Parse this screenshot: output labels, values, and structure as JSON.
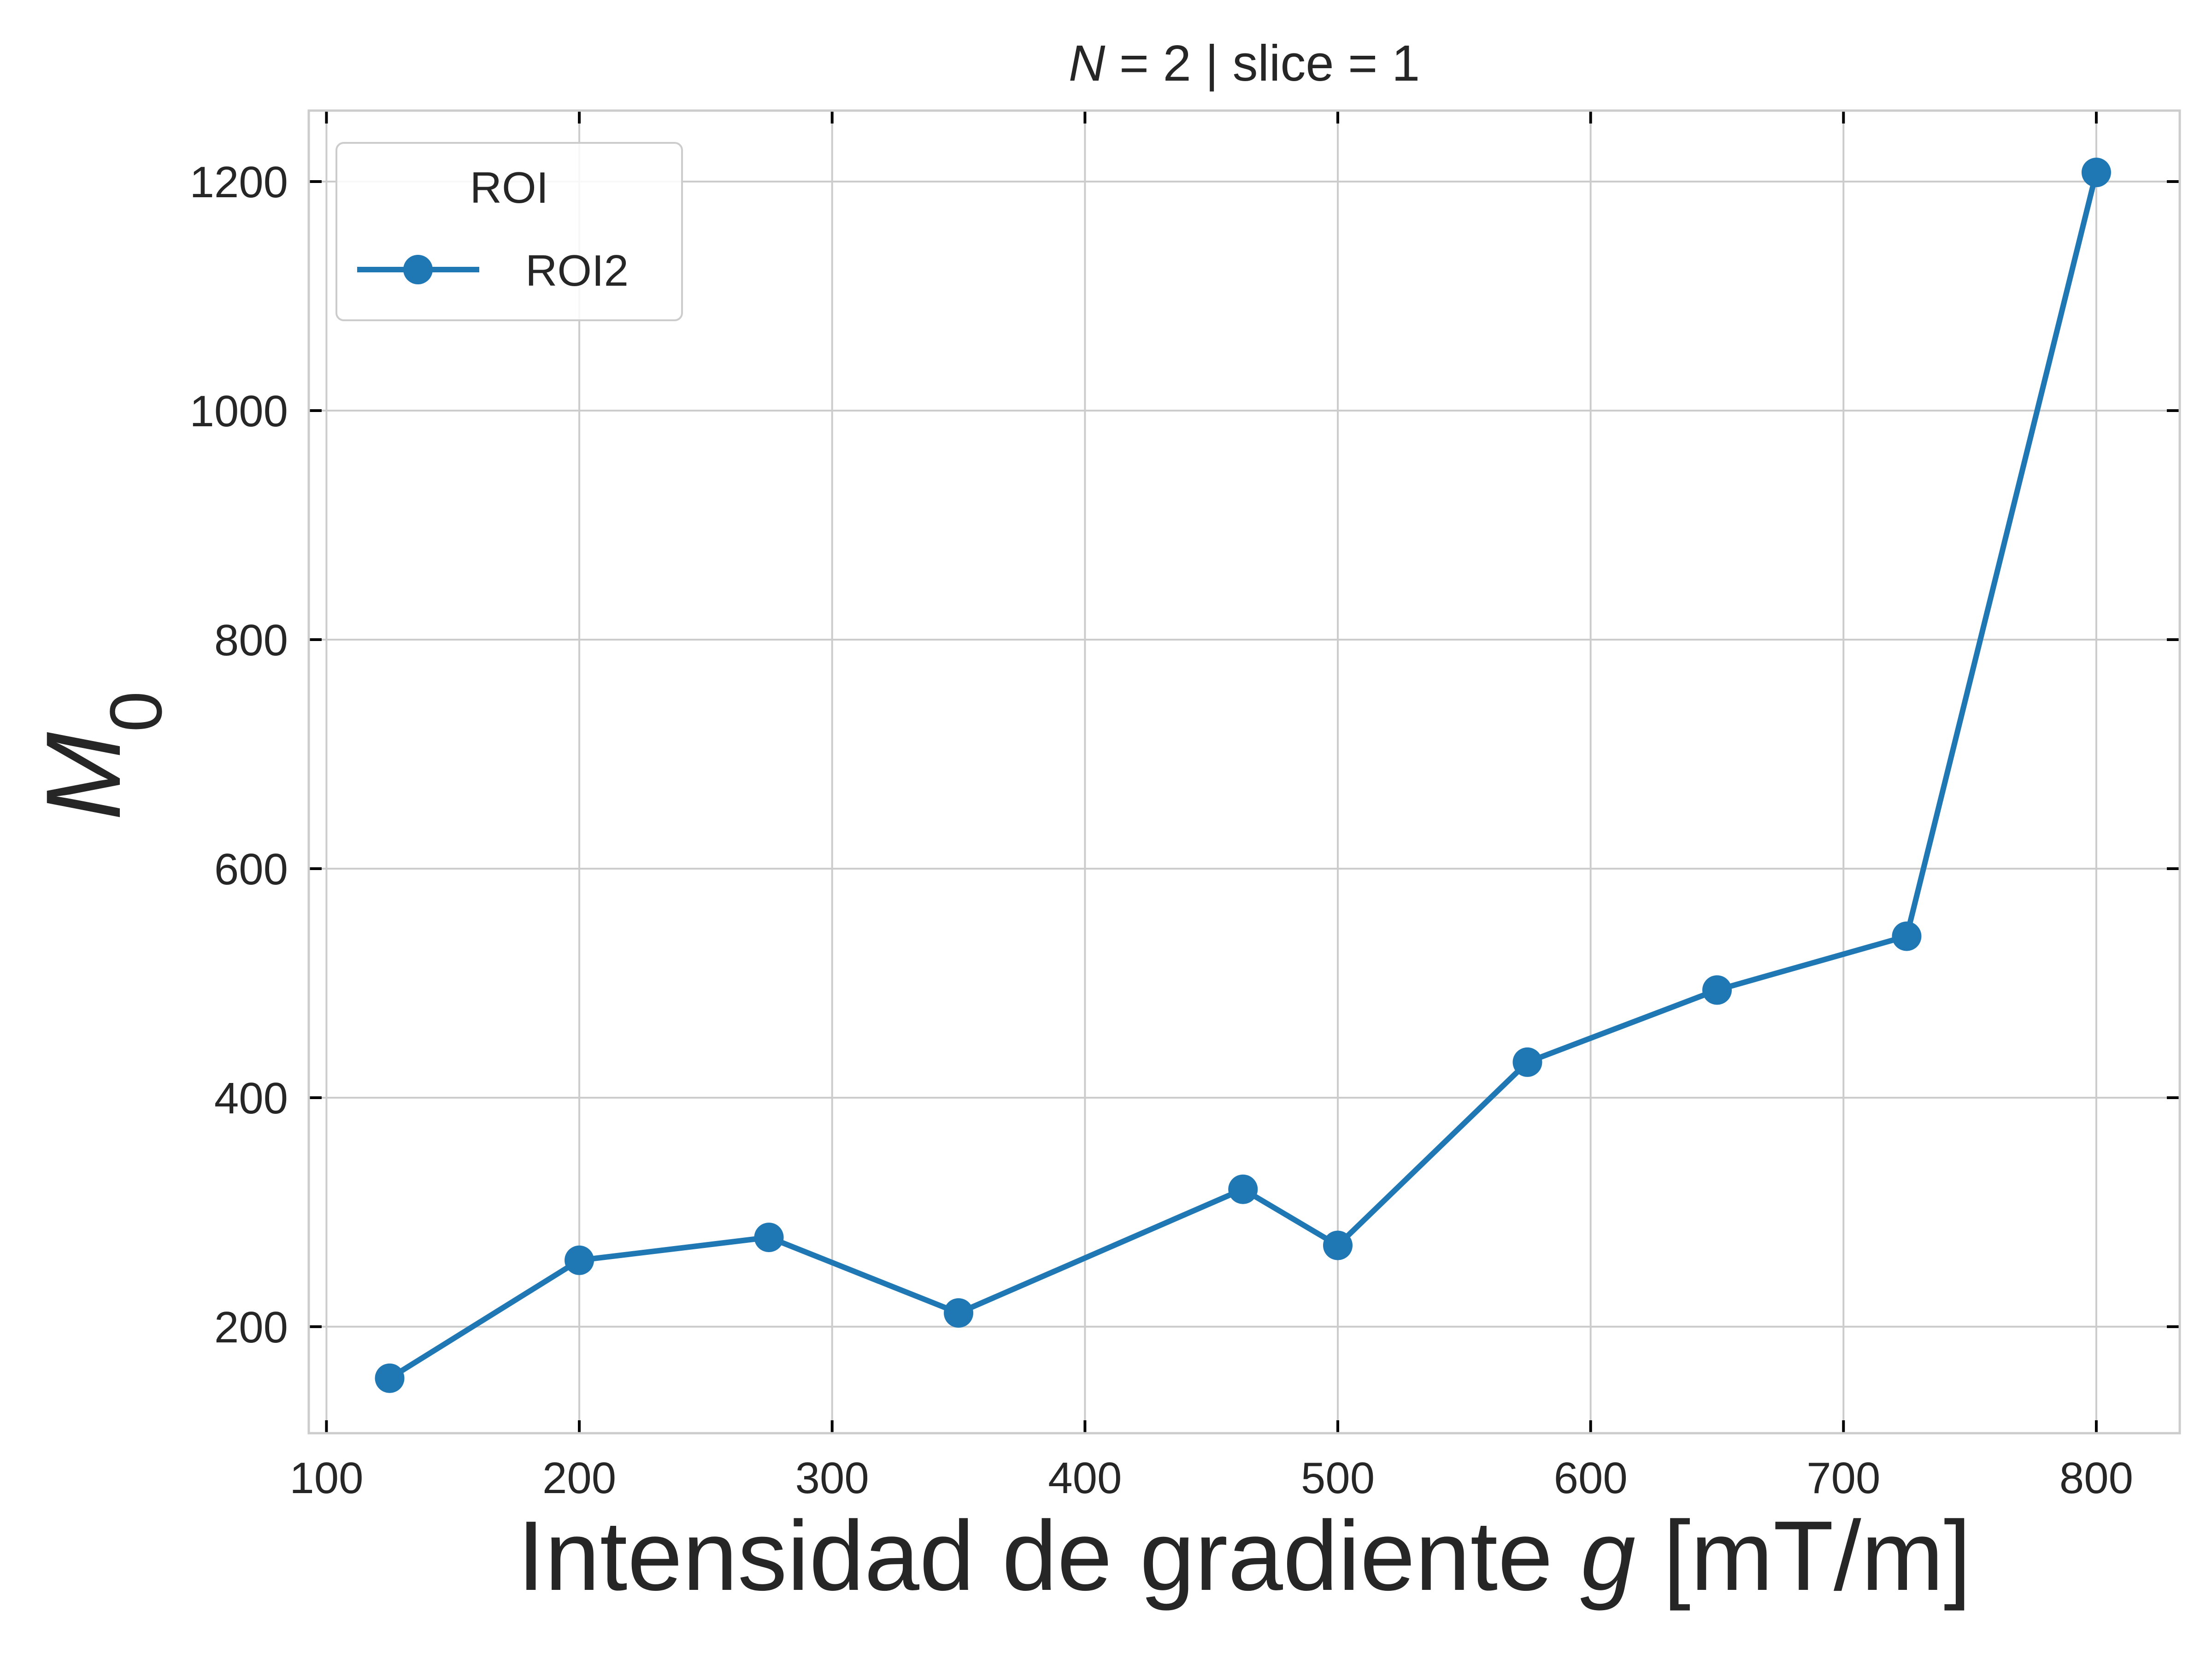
{
  "chart_data": {
    "type": "line",
    "title_parts": {
      "var": "N",
      "rest": " = 2 | slice = 1"
    },
    "xlabel_parts": {
      "pre": "Intensidad de gradiente ",
      "var": "g",
      "post": " [mT/m]"
    },
    "ylabel_parts": {
      "base": "M",
      "sub": "0"
    },
    "xlim": [
      93,
      833
    ],
    "ylim": [
      107,
      1262
    ],
    "xticks": [
      100,
      200,
      300,
      400,
      500,
      600,
      700,
      800
    ],
    "yticks": [
      200,
      400,
      600,
      800,
      1000,
      1200
    ],
    "grid": true,
    "legend": {
      "title": "ROI",
      "placement": "top-left"
    },
    "series": [
      {
        "name": "ROI2",
        "color": "#1f77b4",
        "x": [
          125,
          200,
          275,
          350,
          462.5,
          500,
          575,
          650,
          725,
          800
        ],
        "y": [
          155,
          258,
          278,
          212,
          320,
          271,
          431,
          494,
          541,
          1208
        ]
      }
    ]
  }
}
